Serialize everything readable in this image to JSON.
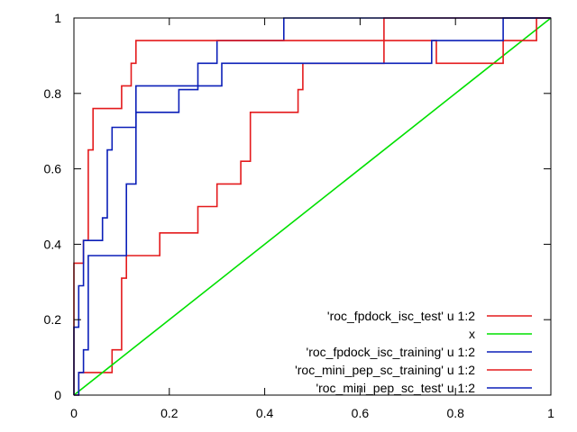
{
  "chart_data": {
    "type": "line",
    "title": "",
    "xlabel": "",
    "ylabel": "",
    "xlim": [
      0,
      1
    ],
    "ylim": [
      0,
      1
    ],
    "xticks": [
      "0",
      "0.2",
      "0.4",
      "0.6",
      "0.8",
      "1"
    ],
    "yticks": [
      "0",
      "0.2",
      "0.4",
      "0.6",
      "0.8",
      "1"
    ],
    "grid": false,
    "legend_position": "bottom-right",
    "series": [
      {
        "name": "'roc_fpdock_isc_test' u 1:2",
        "color": "#e41a1c",
        "x": [
          0.0,
          0.01,
          0.01,
          0.08,
          0.08,
          0.1,
          0.1,
          0.11,
          0.11,
          0.18,
          0.18,
          0.26,
          0.26,
          0.3,
          0.3,
          0.35,
          0.35,
          0.37,
          0.37,
          0.47,
          0.47,
          0.48,
          0.48,
          0.65,
          0.65,
          1.0
        ],
        "y": [
          0.0,
          0.0,
          0.06,
          0.06,
          0.12,
          0.12,
          0.31,
          0.31,
          0.37,
          0.37,
          0.43,
          0.43,
          0.5,
          0.5,
          0.56,
          0.56,
          0.62,
          0.62,
          0.75,
          0.75,
          0.81,
          0.81,
          0.88,
          0.88,
          1.0,
          1.0
        ]
      },
      {
        "name": "x",
        "color": "#00e000",
        "x": [
          0.0,
          1.0
        ],
        "y": [
          0.0,
          1.0
        ]
      },
      {
        "name": "'roc_fpdock_isc_training' u 1:2",
        "color": "#0b1fb8",
        "x": [
          0.0,
          0.01,
          0.01,
          0.02,
          0.02,
          0.03,
          0.03,
          0.11,
          0.11,
          0.13,
          0.13,
          0.22,
          0.22,
          0.26,
          0.26,
          0.3,
          0.3,
          0.44,
          0.44,
          0.51,
          0.51,
          1.0
        ],
        "y": [
          0.0,
          0.0,
          0.06,
          0.06,
          0.12,
          0.12,
          0.37,
          0.37,
          0.56,
          0.56,
          0.75,
          0.75,
          0.81,
          0.81,
          0.88,
          0.88,
          0.94,
          0.94,
          1.0,
          1.0,
          1.0,
          1.0
        ]
      },
      {
        "name": "'roc_mini_pep_sc_training' u 1:2",
        "color": "#e41a1c",
        "x": [
          0.0,
          0.0,
          0.02,
          0.02,
          0.03,
          0.03,
          0.04,
          0.04,
          0.1,
          0.1,
          0.12,
          0.12,
          0.13,
          0.13,
          0.76,
          0.76,
          0.9,
          0.9,
          0.97,
          0.97,
          1.0
        ],
        "y": [
          0.0,
          0.35,
          0.35,
          0.41,
          0.41,
          0.65,
          0.65,
          0.76,
          0.76,
          0.82,
          0.82,
          0.88,
          0.88,
          0.94,
          0.94,
          0.88,
          0.88,
          0.94,
          0.94,
          1.0,
          1.0
        ]
      },
      {
        "name": "'roc_mini_pep_sc_test' u 1:2",
        "color": "#0b1fb8",
        "x": [
          0.0,
          0.0,
          0.01,
          0.01,
          0.02,
          0.02,
          0.06,
          0.06,
          0.07,
          0.07,
          0.08,
          0.08,
          0.13,
          0.13,
          0.31,
          0.31,
          0.75,
          0.75,
          0.9,
          0.9,
          1.0
        ],
        "y": [
          0.0,
          0.18,
          0.18,
          0.29,
          0.29,
          0.41,
          0.41,
          0.47,
          0.47,
          0.65,
          0.65,
          0.71,
          0.71,
          0.82,
          0.82,
          0.88,
          0.88,
          0.94,
          0.94,
          1.0,
          1.0
        ]
      }
    ]
  }
}
